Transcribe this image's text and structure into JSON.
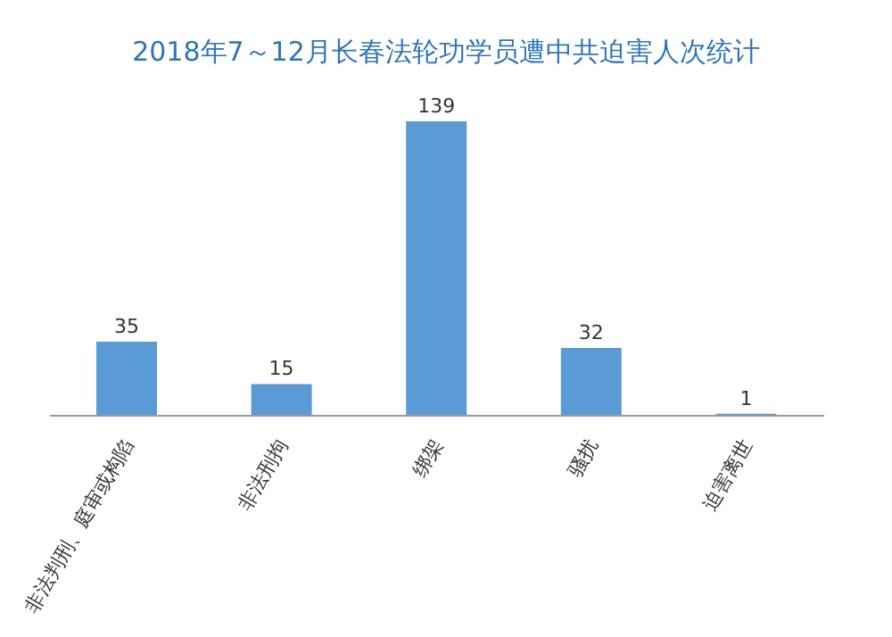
{
  "chart_data": {
    "type": "bar",
    "title": "2018年7～12月长春法轮功学员遭中共迫害人次统计",
    "categories": [
      "非法判刑、庭审或构陷",
      "非法刑拘",
      "绑架",
      "骚扰",
      "迫害离世"
    ],
    "values": [
      35,
      15,
      139,
      32,
      1
    ],
    "color": "#5b9bd5",
    "data_labels": true,
    "grid": false,
    "legend": false
  }
}
